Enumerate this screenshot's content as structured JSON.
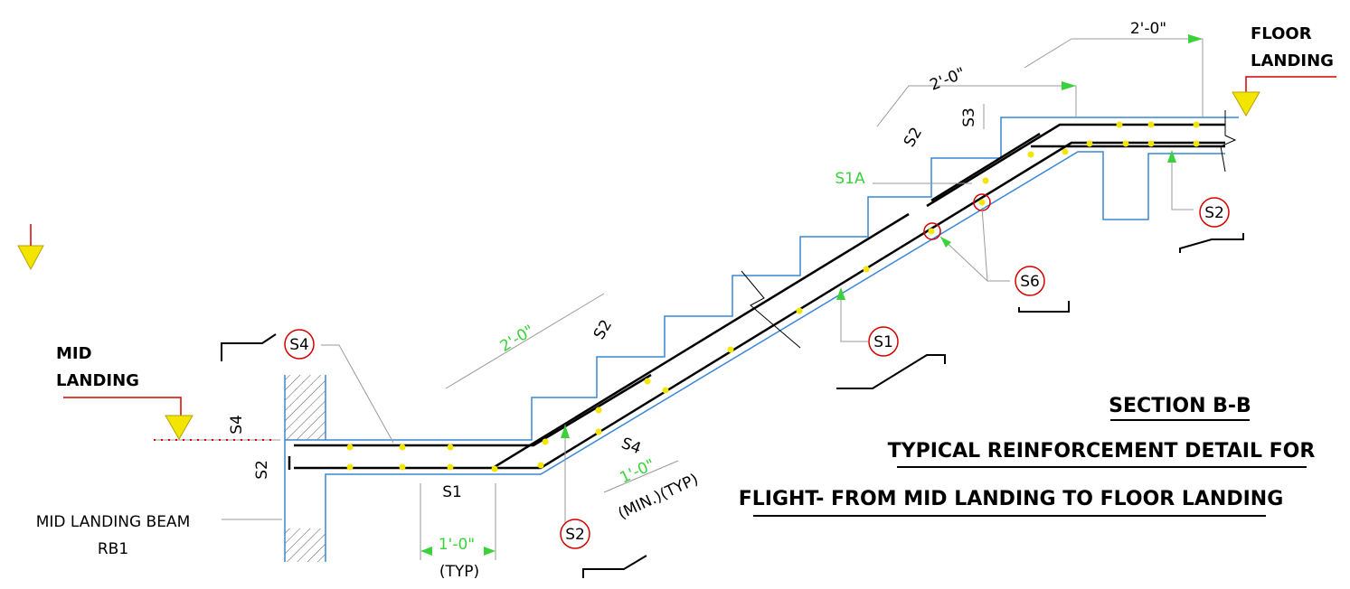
{
  "title": {
    "heading": "SECTION B-B",
    "line1": "TYPICAL REINFORCEMENT DETAIL FOR",
    "line2": "FLIGHT- FROM MID LANDING TO FLOOR LANDING"
  },
  "levels": {
    "floor_landing": [
      "FLOOR",
      "LANDING"
    ],
    "mid_landing": [
      "MID",
      "LANDING"
    ]
  },
  "beam": [
    "MID LANDING BEAM",
    "RB1"
  ],
  "bar_tags": [
    "S4",
    "S2",
    "S1",
    "S6",
    "S2"
  ],
  "bar_labels": [
    "S3",
    "S2",
    "S1A",
    "S2",
    "S4",
    "S2",
    "S1",
    "S4"
  ],
  "dimensions": [
    "2'-0\"",
    "2'-0\"",
    "2'-0\"",
    "1'-0\"",
    "(TYP)",
    "1'-0\"",
    "(MIN.)(TYP)"
  ]
}
